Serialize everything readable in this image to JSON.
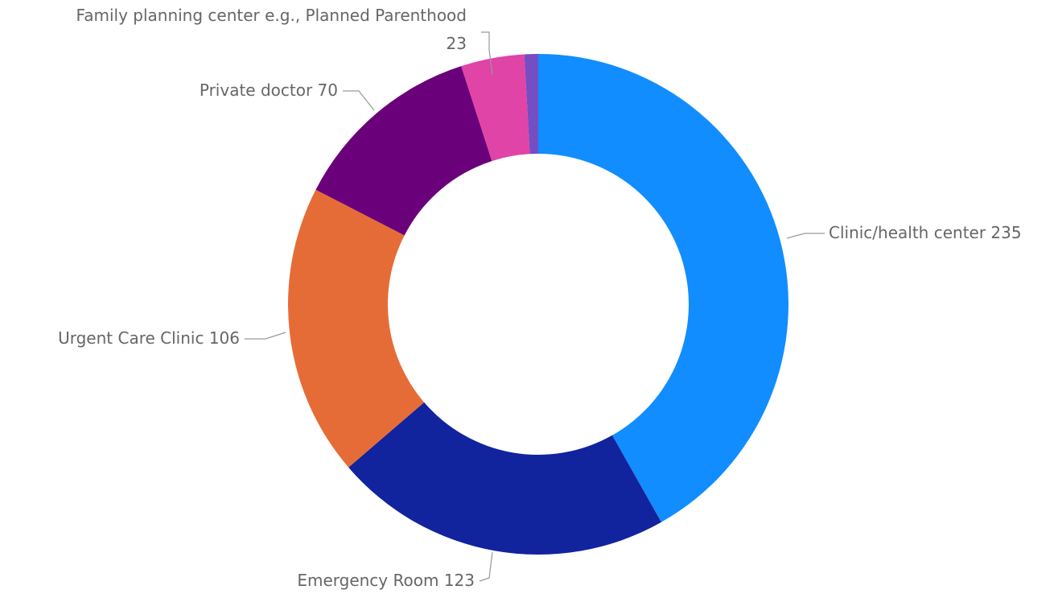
{
  "chart_data": {
    "type": "donut",
    "categories": [
      "Clinic/health center",
      "Emergency Room",
      "Urgent Care Clinic",
      "Private doctor",
      "Family planning center e.g., Planned Parenthood",
      null
    ],
    "values": [
      235,
      123,
      106,
      70,
      23,
      5
    ],
    "colors": [
      "#118dff",
      "#12239e",
      "#e66c37",
      "#6b007b",
      "#e044a7",
      "#744ec2"
    ]
  }
}
